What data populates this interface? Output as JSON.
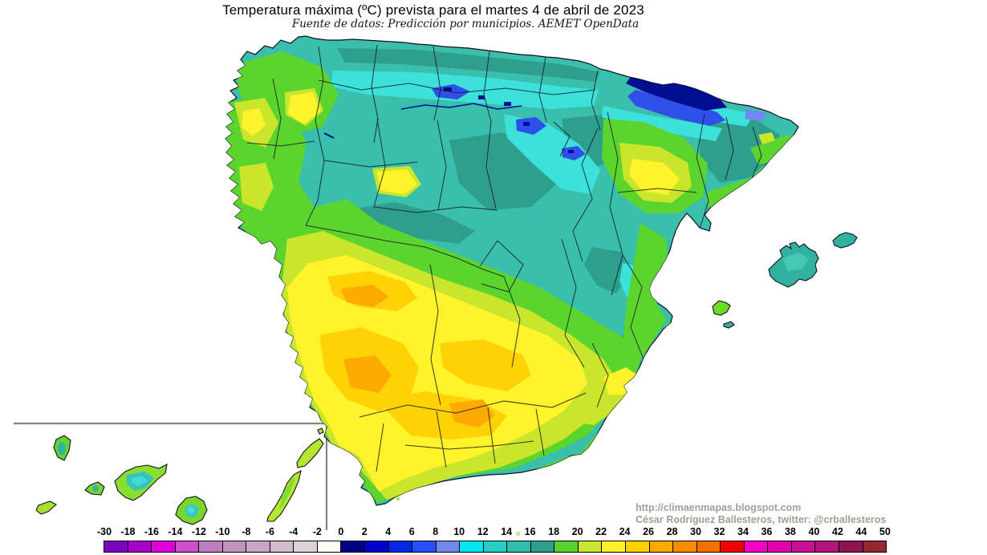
{
  "header": {
    "title": "Temperatura máxima (ºC) prevista para el martes 4 de abril de 2023",
    "subtitle": "Fuente de datos: Predicción por municipios. AEMET OpenData"
  },
  "attribution": {
    "line1": "http://climaenmapas.blogspot.com",
    "line2": "César Rodríguez Ballesteros, twitter: @crballesteros"
  },
  "legend": {
    "unit": "ºC",
    "tick_labels": [
      "-30",
      "-18",
      "-16",
      "-14",
      "-12",
      "-10",
      "-8",
      "-6",
      "-4",
      "-2",
      "0",
      "2",
      "4",
      "6",
      "8",
      "10",
      "12",
      "14",
      "16",
      "18",
      "20",
      "22",
      "24",
      "26",
      "28",
      "30",
      "32",
      "34",
      "36",
      "38",
      "40",
      "42",
      "44",
      "50"
    ],
    "cell_colors": [
      "#7d00be",
      "#a800c8",
      "#dc00dc",
      "#cc4fcc",
      "#be7dbe",
      "#c291bc",
      "#cba5c4",
      "#d2bccc",
      "#dad2d8",
      "#fffff2",
      "#000082",
      "#0000cd",
      "#0028e6",
      "#2850fa",
      "#7387f0",
      "#00e6f0",
      "#28cdc3",
      "#30beac",
      "#2e9e8c",
      "#55d22d",
      "#c8e632",
      "#fff22d",
      "#ffd200",
      "#ffaa00",
      "#ff8c00",
      "#f56e00",
      "#f00000",
      "#f500c8",
      "#e100af",
      "#c80f96",
      "#b4147d",
      "#8c1450",
      "#96282d"
    ]
  }
}
